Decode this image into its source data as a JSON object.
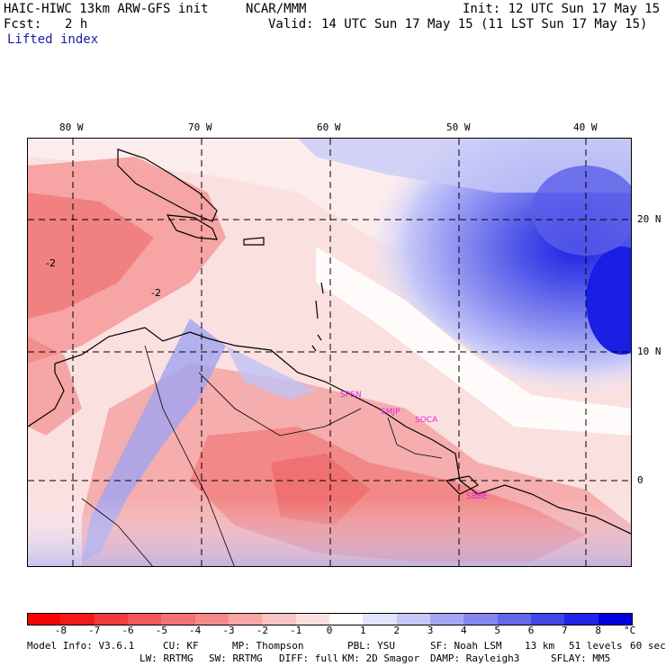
{
  "header": {
    "model_title": "HAIC-HIWC 13km ARW-GFS init",
    "org": "NCAR/MMM",
    "init_time": "Init: 12 UTC Sun 17 May 15",
    "fcst_label": "Fcst:",
    "fcst_hours": "2 h",
    "valid_time": "Valid: 14 UTC Sun 17 May 15 (11 LST Sun 17 May 15)",
    "field_name": "Lifted index"
  },
  "map": {
    "lon_labels": [
      "80 W",
      "70 W",
      "60 W",
      "50 W",
      "40 W"
    ],
    "lat_labels": [
      "20 N",
      "10 N",
      "0"
    ],
    "sites": [
      "SPSN",
      "SMJP",
      "SOCA",
      "SBBE"
    ],
    "contour_labels": [
      "-2",
      "-2"
    ]
  },
  "colorbar": {
    "labels": [
      "-8",
      "-7",
      "-6",
      "-5",
      "-4",
      "-3",
      "-2",
      "-1",
      "0",
      "1",
      "2",
      "3",
      "4",
      "5",
      "6",
      "7",
      "8"
    ],
    "unit": "°C",
    "colors": [
      "#ff0000",
      "#f41a1a",
      "#f03c3c",
      "#f25858",
      "#f47272",
      "#f68a8a",
      "#f8a6a6",
      "#fac4c4",
      "#fce0e0",
      "#ffffff",
      "#e2e4fc",
      "#c6c8f8",
      "#a4a8f4",
      "#8488f0",
      "#6268ec",
      "#4046e8",
      "#2024e6",
      "#0000e0"
    ]
  },
  "footer": {
    "line1": {
      "model_info": "Model Info: V3.6.1",
      "cu": "CU: KF",
      "mp": "MP: Thompson",
      "pbl": "PBL: YSU",
      "sf": "SF: Noah LSM",
      "res": "13 km",
      "levels": "51 levels",
      "dt": "60 sec"
    },
    "line2": {
      "lw": "LW: RRTMG",
      "sw": "SW: RRTMG",
      "diff": "DIFF: full",
      "km": "KM: 2D Smagor",
      "damp": "DAMP: Rayleigh3",
      "sflay": "SFLAY: MM5"
    }
  }
}
